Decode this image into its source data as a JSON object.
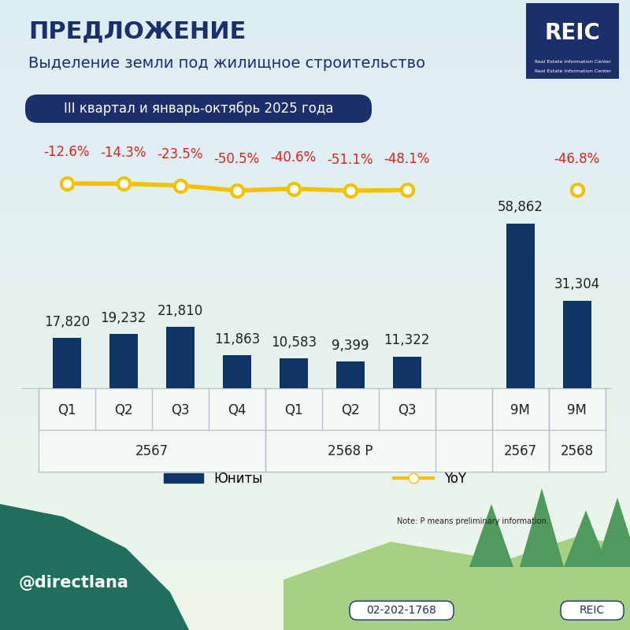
{
  "chart_data": {
    "type": "bar",
    "title": "ПРЕДЛОЖЕНИЕ",
    "subtitle": "Выделение земли под жилищное строительство",
    "period": "III квартал и январь-октябрь 2025 года",
    "categories": [
      "Q1",
      "Q2",
      "Q3",
      "Q4",
      "Q1",
      "Q2",
      "Q3",
      null,
      "9M",
      "9M"
    ],
    "groups": [
      {
        "label": "2567",
        "span": [
          0,
          3
        ]
      },
      {
        "label": "2568 P",
        "span": [
          4,
          6
        ]
      },
      {
        "label": "2567",
        "span": [
          8,
          8
        ]
      },
      {
        "label": "2568",
        "span": [
          9,
          9
        ]
      }
    ],
    "series": [
      {
        "name": "Юниты",
        "type": "bar",
        "color": "#0e3563",
        "values": [
          17820,
          19232,
          21810,
          11863,
          10583,
          9399,
          11322,
          null,
          58862,
          31304
        ],
        "value_labels": [
          "17,820",
          "19,232",
          "21,810",
          "11,863",
          "10,583",
          "9,399",
          "11,322",
          null,
          "58,862",
          "31,304"
        ]
      },
      {
        "name": "YoY",
        "type": "line",
        "axis": "y2",
        "color": "#f2c200",
        "marker": "o",
        "values": [
          -12.6,
          -14.3,
          -23.5,
          -50.5,
          -40.6,
          -51.1,
          -48.1,
          null,
          null,
          -46.8
        ],
        "value_labels": [
          "-12.6%",
          "-14.3%",
          "-23.5%",
          "-50.5%",
          "-40.6%",
          "-51.1%",
          "-48.1%",
          null,
          null,
          "-46.8%"
        ]
      }
    ],
    "ylim": [
      0,
      88000
    ],
    "y2lim": [
      -1105,
      210
    ],
    "data_labels": true,
    "tick_labels": "x",
    "legend": "lower center",
    "note": "Note: P means preliminary information."
  },
  "branding": {
    "logo": "REIC",
    "logo_lines": [
      "Real Estate Information Center",
      "Real Estate Information Center"
    ],
    "handle": "@directlana",
    "phone": "02-202-1768",
    "search": "REIC"
  }
}
